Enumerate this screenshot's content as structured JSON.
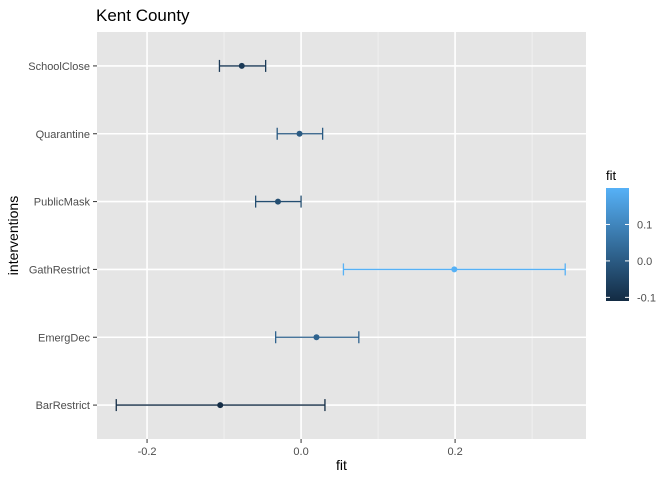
{
  "chart_data": {
    "type": "scatter",
    "subtype": "point-with-errorbars",
    "title": "Kent County",
    "xlabel": "fit",
    "ylabel": "interventions",
    "xlim": [
      -0.265,
      0.37
    ],
    "x_ticks": [
      -0.2,
      0.0,
      0.2
    ],
    "x_tick_labels": [
      "-0.2",
      "0.0",
      "0.2"
    ],
    "categories": [
      "SchoolClose",
      "Quarantine",
      "PublicMask",
      "GathRestrict",
      "EmergDec",
      "BarRestrict"
    ],
    "points": [
      {
        "category": "SchoolClose",
        "fit": -0.077,
        "lower": -0.106,
        "upper": -0.046
      },
      {
        "category": "Quarantine",
        "fit": -0.002,
        "lower": -0.031,
        "upper": 0.028
      },
      {
        "category": "PublicMask",
        "fit": -0.03,
        "lower": -0.059,
        "upper": 0.0
      },
      {
        "category": "GathRestrict",
        "fit": 0.199,
        "lower": 0.055,
        "upper": 0.343
      },
      {
        "category": "EmergDec",
        "fit": 0.02,
        "lower": -0.033,
        "upper": 0.075
      },
      {
        "category": "BarRestrict",
        "fit": -0.105,
        "lower": -0.24,
        "upper": 0.031
      }
    ],
    "grid": true,
    "background": "#e5e5e5",
    "legend": {
      "title": "fit",
      "placement": "right",
      "breaks": [
        0.1,
        0.0,
        -0.1
      ],
      "break_labels": [
        "0.1",
        "0.0",
        "-0.1"
      ],
      "range": [
        -0.11,
        0.2
      ],
      "color_low": "#132b43",
      "color_high": "#56b1f7"
    }
  }
}
